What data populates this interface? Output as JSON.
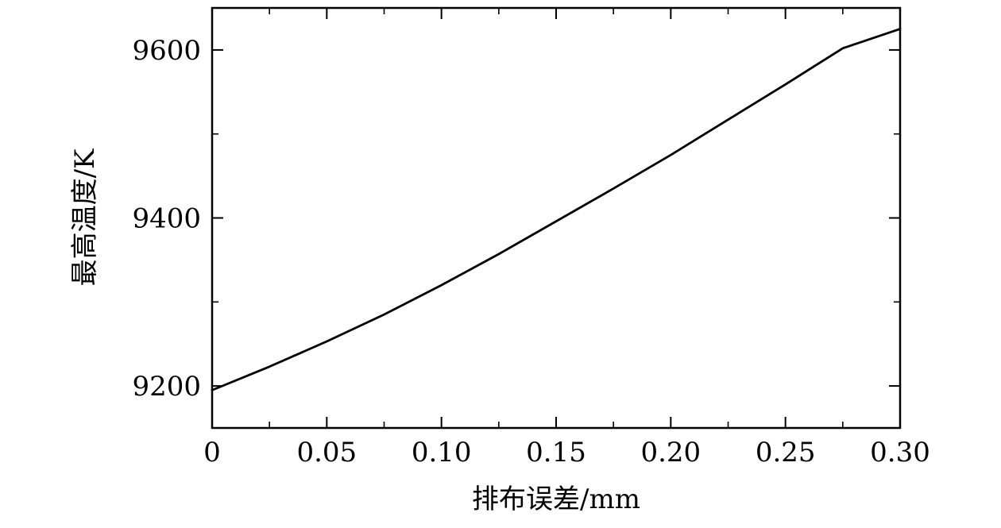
{
  "chart_data": {
    "type": "line",
    "title": "",
    "xlabel": "排布误差/mm",
    "ylabel": "最高温度/K",
    "xlim": [
      0,
      0.3
    ],
    "ylim": [
      9150,
      9650
    ],
    "x_ticks": [
      {
        "value": 0,
        "label": "0"
      },
      {
        "value": 0.05,
        "label": "0.05"
      },
      {
        "value": 0.1,
        "label": "0.10"
      },
      {
        "value": 0.15,
        "label": "0.15"
      },
      {
        "value": 0.2,
        "label": "0.20"
      },
      {
        "value": 0.25,
        "label": "0.25"
      },
      {
        "value": 0.3,
        "label": "0.30"
      }
    ],
    "x_minor_ticks": [
      0.025,
      0.075,
      0.125,
      0.175,
      0.225,
      0.275
    ],
    "y_ticks": [
      {
        "value": 9200,
        "label": "9200"
      },
      {
        "value": 9400,
        "label": "9400"
      },
      {
        "value": 9600,
        "label": "9600"
      }
    ],
    "y_minor_ticks": [
      9300,
      9500
    ],
    "grid": false,
    "series": [
      {
        "color": "#000000",
        "x": [
          0,
          0.025,
          0.05,
          0.075,
          0.1,
          0.125,
          0.15,
          0.175,
          0.2,
          0.225,
          0.25,
          0.275,
          0.3
        ],
        "y": [
          9195,
          9223,
          9253,
          9285,
          9320,
          9357,
          9396,
          9435,
          9475,
          9517,
          9559,
          9602,
          9625
        ]
      }
    ]
  }
}
